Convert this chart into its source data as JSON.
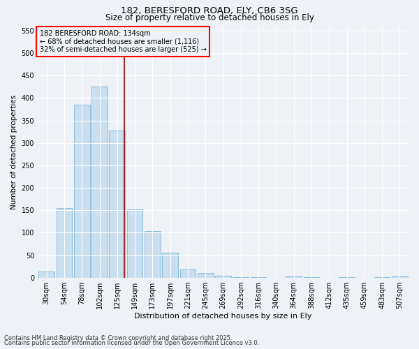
{
  "title_line1": "182, BERESFORD ROAD, ELY, CB6 3SG",
  "title_line2": "Size of property relative to detached houses in Ely",
  "xlabel": "Distribution of detached houses by size in Ely",
  "ylabel": "Number of detached properties",
  "bar_labels": [
    "30sqm",
    "54sqm",
    "78sqm",
    "102sqm",
    "125sqm",
    "149sqm",
    "173sqm",
    "197sqm",
    "221sqm",
    "245sqm",
    "269sqm",
    "292sqm",
    "316sqm",
    "340sqm",
    "364sqm",
    "388sqm",
    "412sqm",
    "435sqm",
    "459sqm",
    "483sqm",
    "507sqm"
  ],
  "bar_values": [
    13,
    155,
    385,
    425,
    328,
    152,
    103,
    55,
    18,
    10,
    4,
    1,
    1,
    0,
    3,
    1,
    0,
    1,
    0,
    1,
    3
  ],
  "bar_color": "#c9dff0",
  "bar_edge_color": "#7ab4d8",
  "background_color": "#eef2f7",
  "grid_color": "#ffffff",
  "red_line_x": 4.42,
  "annotation_line1": "182 BERESFORD ROAD: 134sqm",
  "annotation_line2": "← 68% of detached houses are smaller (1,116)",
  "annotation_line3": "32% of semi-detached houses are larger (525) →",
  "ylim": [
    0,
    560
  ],
  "yticks": [
    0,
    50,
    100,
    150,
    200,
    250,
    300,
    350,
    400,
    450,
    500,
    550
  ],
  "title_fontsize": 9.5,
  "subtitle_fontsize": 8.5,
  "ylabel_fontsize": 7.5,
  "xlabel_fontsize": 8,
  "tick_fontsize": 7,
  "annot_fontsize": 7,
  "footnote_fontsize": 6,
  "footnote1": "Contains HM Land Registry data © Crown copyright and database right 2025.",
  "footnote2": "Contains public sector information licensed under the Open Government Licence v3.0."
}
